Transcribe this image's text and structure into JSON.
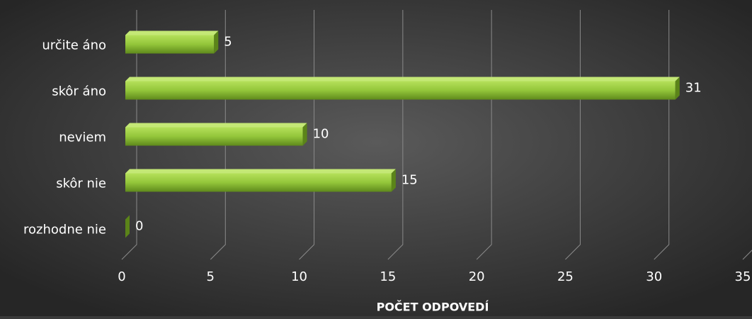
{
  "chart_data": {
    "type": "bar",
    "orientation": "horizontal",
    "categories": [
      "určite áno",
      "skôr áno",
      "neviem",
      "skôr nie",
      "rozhodne nie"
    ],
    "values": [
      5,
      31,
      10,
      15,
      0
    ],
    "color": "#8fc236",
    "xlabel": "POČET ODPOVEDÍ",
    "xlim": [
      0,
      35
    ],
    "xticks": [
      0,
      5,
      10,
      15,
      20,
      25,
      30,
      35
    ],
    "grid": true
  }
}
